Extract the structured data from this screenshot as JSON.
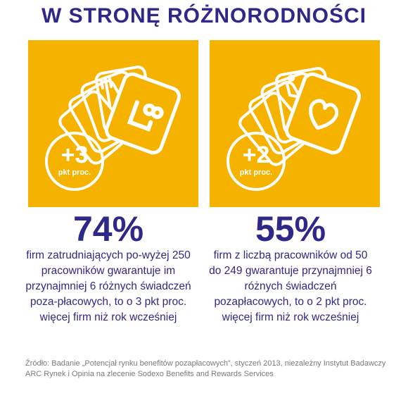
{
  "title": "W STRONĘ RÓŻNORODNOŚCI",
  "colors": {
    "panel": "#f5b300",
    "text": "#2e2888",
    "source": "#7a7a7a"
  },
  "left": {
    "badge_value": "+3",
    "badge_unit": "pkt proc.",
    "card_icon": "fork-knife-gift-icon",
    "percent": "74%",
    "description": "firm zatrudniających po-wyżej 250 pracowników gwarantuje im przynajmniej 6 różnych świadczeń poza-płacowych, to o 3 pkt  proc. więcej firm niż rok wcześniej"
  },
  "right": {
    "badge_value": "+2",
    "badge_unit": "pkt proc.",
    "card_icon": "heart-accessibility-icon",
    "percent": "55%",
    "description": "firm z liczbą pracowników od 50 do 249 gwarantuje przynajmniej 6 różnych świadczeń pozapłacowych, to o 2 pkt  proc. więcej firm niż rok wcześniej"
  },
  "source": "Źródło: Badanie „Potencjał rynku benefitów pozapłacowych”, styczeń 2013, niezależny Instytut Badawczy ARC Rynek i Opinia na zlecenie Sodexo Benefits and Rewards Services"
}
